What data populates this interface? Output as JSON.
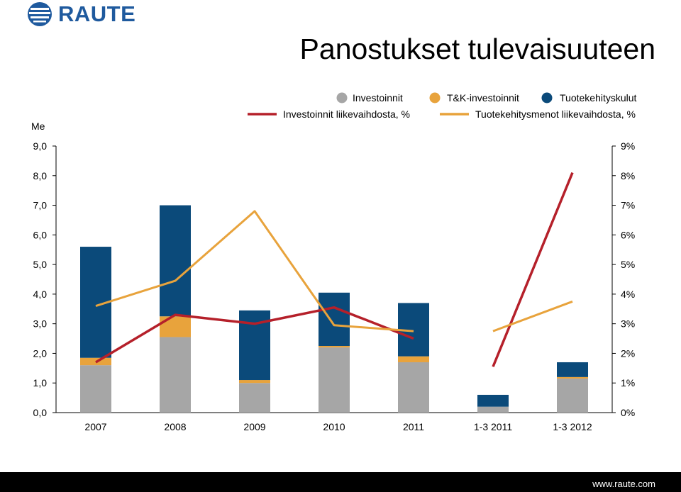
{
  "logo": {
    "text": "RAUTE"
  },
  "title": "Panostukset tulevaisuuteen",
  "footer": {
    "url": "www.raute.com"
  },
  "colors": {
    "investoinnit": "#a6a6a6",
    "tk_investoinnit": "#e8a33c",
    "tuotekehityskulut": "#0b4a7a",
    "investoinnit_pct_line": "#b5202a",
    "tuotekehitys_pct_line": "#e8a33c",
    "logo": "#1f5a9e"
  },
  "chart_data": {
    "type": "bar",
    "stacked": true,
    "categories": [
      "2007",
      "2008",
      "2009",
      "2010",
      "2011",
      "1-3 2011",
      "1-3 2012"
    ],
    "y_left": {
      "label": "Me",
      "range": [
        0,
        9
      ],
      "ticks": [
        "0,0",
        "1,0",
        "2,0",
        "3,0",
        "4,0",
        "5,0",
        "6,0",
        "7,0",
        "8,0",
        "9,0"
      ]
    },
    "y_right": {
      "range": [
        0,
        9
      ],
      "ticks": [
        "0%",
        "1%",
        "2%",
        "3%",
        "4%",
        "5%",
        "6%",
        "7%",
        "8%",
        "9%"
      ]
    },
    "series": [
      {
        "name": "Investoinnit",
        "kind": "bar",
        "color": "#a6a6a6",
        "values": [
          1.6,
          2.55,
          1.0,
          2.2,
          1.7,
          0.2,
          1.15
        ]
      },
      {
        "name": "T&K-investoinnit",
        "kind": "bar",
        "color": "#e8a33c",
        "values": [
          0.25,
          0.7,
          0.1,
          0.05,
          0.2,
          0.0,
          0.05
        ]
      },
      {
        "name": "Tuotekehityskulut",
        "kind": "bar",
        "color": "#0b4a7a",
        "values": [
          3.75,
          3.75,
          2.35,
          1.8,
          1.8,
          0.4,
          0.5
        ]
      },
      {
        "name": "Investoinnit liikevaihdosta, %",
        "kind": "line",
        "color": "#b5202a",
        "segments": [
          [
            0,
            4
          ],
          [
            5,
            6
          ]
        ],
        "values": [
          1.7,
          3.3,
          3.0,
          3.55,
          2.5,
          1.55,
          8.1
        ]
      },
      {
        "name": "Tuotekehitysmenot liikevaihdosta, %",
        "kind": "line",
        "color": "#e8a33c",
        "segments": [
          [
            0,
            4
          ],
          [
            5,
            6
          ]
        ],
        "values": [
          3.6,
          4.45,
          6.8,
          2.95,
          2.75,
          2.75,
          3.75
        ]
      }
    ],
    "legend": {
      "row1": [
        "Investoinnit",
        "T&K-investoinnit",
        "Tuotekehityskulut"
      ],
      "row2": [
        "Investoinnit liikevaihdosta, %",
        "Tuotekehitysmenot liikevaihdosta, %"
      ],
      "placement": "top"
    }
  }
}
